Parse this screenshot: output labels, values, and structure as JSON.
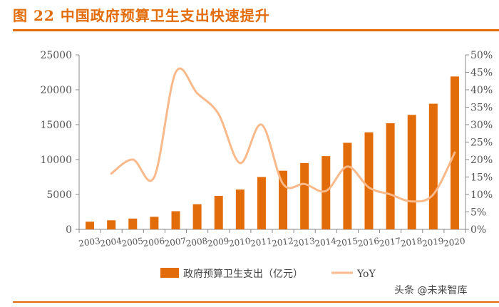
{
  "title": "图 22 中国政府预算卫生支出快速提升",
  "watermark": "头条 @未来智库",
  "chart_data": {
    "type": "bar",
    "categories": [
      "2003",
      "2004",
      "2005",
      "2006",
      "2007",
      "2008",
      "2009",
      "2010",
      "2011",
      "2012",
      "2013",
      "2014",
      "2015",
      "2016",
      "2017",
      "2018",
      "2019",
      "2020"
    ],
    "series": [
      {
        "name": "政府预算卫生支出（亿元）",
        "type": "bar",
        "axis": "left",
        "color": "#e36c0a",
        "values": [
          1100,
          1300,
          1550,
          1800,
          2600,
          3600,
          4800,
          5700,
          7500,
          8400,
          9500,
          10500,
          12400,
          13900,
          15200,
          16400,
          18000,
          21900
        ]
      },
      {
        "name": "YoY",
        "type": "line",
        "axis": "right",
        "color": "#f9b98a",
        "values": [
          null,
          0.16,
          0.2,
          0.15,
          0.45,
          0.39,
          0.33,
          0.19,
          0.3,
          0.13,
          0.13,
          0.11,
          0.18,
          0.12,
          0.1,
          0.08,
          0.1,
          0.22
        ]
      }
    ],
    "y_left": {
      "min": 0,
      "max": 25000,
      "ticks": [
        "0",
        "5000",
        "10000",
        "15000",
        "20000",
        "25000"
      ]
    },
    "y_right": {
      "min": 0,
      "max": 0.5,
      "ticks": [
        "0%",
        "5%",
        "10%",
        "15%",
        "20%",
        "25%",
        "30%",
        "35%",
        "40%",
        "45%",
        "50%"
      ]
    },
    "legend_position": "bottom",
    "grid": false
  }
}
